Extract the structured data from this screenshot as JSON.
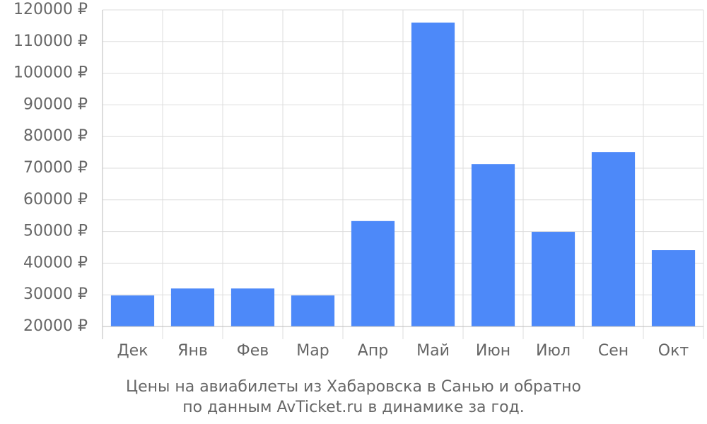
{
  "chart_data": {
    "type": "bar",
    "title": "Цены на авиабилеты из Хабаровска в Санью и обратно",
    "subtitle": "по данным AvTicket.ru в динамике за год.",
    "categories": [
      "Дек",
      "Янв",
      "Фев",
      "Мар",
      "Апр",
      "Май",
      "Июн",
      "Июл",
      "Сен",
      "Окт"
    ],
    "values": [
      29800,
      32000,
      32000,
      29800,
      53300,
      116000,
      71300,
      49900,
      75100,
      44100
    ],
    "color": "#4d89f9",
    "ylim": [
      20000,
      120000
    ],
    "yticks": [
      {
        "value": 20000,
        "label": "20000 ₽"
      },
      {
        "value": 30000,
        "label": "30000 ₽"
      },
      {
        "value": 40000,
        "label": "40000 ₽"
      },
      {
        "value": 50000,
        "label": "50000 ₽"
      },
      {
        "value": 60000,
        "label": "60000 ₽"
      },
      {
        "value": 70000,
        "label": "70000 ₽"
      },
      {
        "value": 80000,
        "label": "80000 ₽"
      },
      {
        "value": 90000,
        "label": "90000 ₽"
      },
      {
        "value": 100000,
        "label": "100000 ₽"
      },
      {
        "value": 110000,
        "label": "110000 ₽"
      },
      {
        "value": 120000,
        "label": "120000 ₽"
      }
    ],
    "grid": true
  }
}
